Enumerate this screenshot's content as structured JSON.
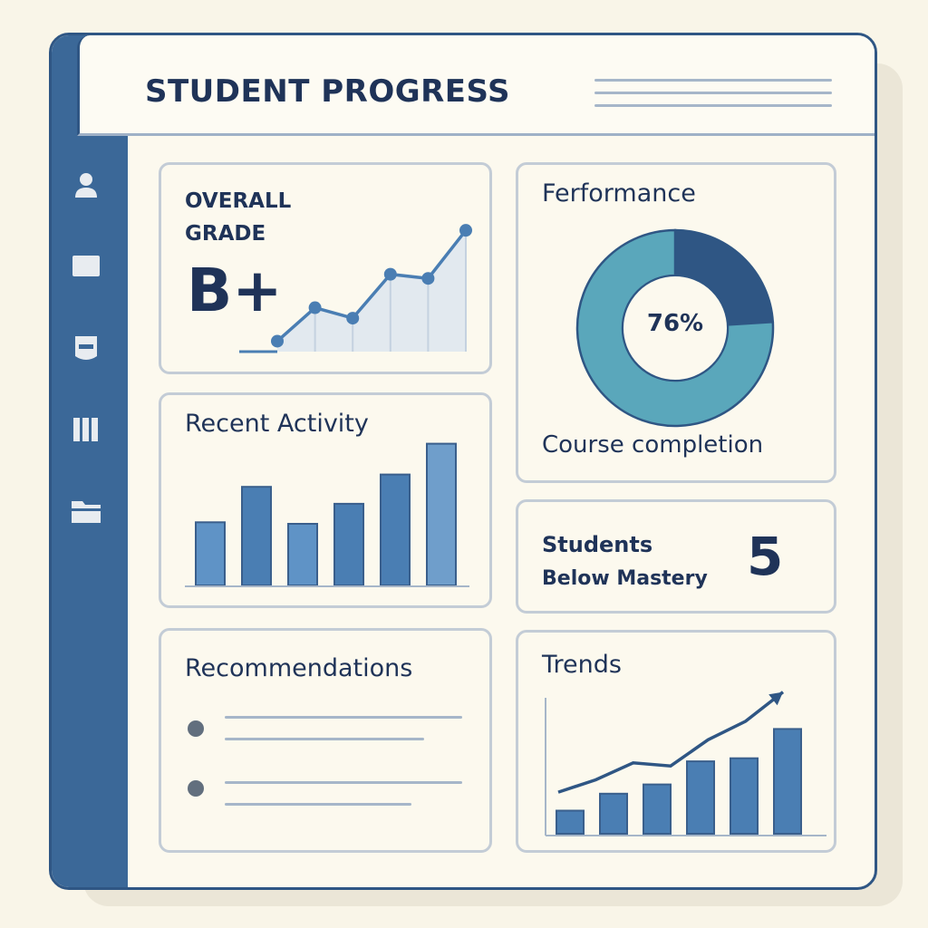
{
  "header": {
    "title": "STUDENT PROGRESS"
  },
  "sidebar": {
    "items": [
      {
        "icon": "user-icon"
      },
      {
        "icon": "monitor-icon"
      },
      {
        "icon": "badge-icon"
      },
      {
        "icon": "book-icon"
      },
      {
        "icon": "folder-icon"
      }
    ]
  },
  "overall_grade": {
    "title_line1": "OVERALL",
    "title_line2": "GRADE",
    "grade": "B+"
  },
  "performance": {
    "title": "Ferformance",
    "percent_label": "76%",
    "caption": "Course completion"
  },
  "recent_activity": {
    "title": "Recent Activity"
  },
  "students_below": {
    "title_line1": "Students",
    "title_line2": "Below Mastery",
    "count": "5"
  },
  "recommendations": {
    "title": "Recommendations"
  },
  "trends": {
    "title": "Trends"
  },
  "colors": {
    "navy": "#2f5684",
    "bar_blue": "#4a7eb3",
    "light_blue": "#6f9ecb",
    "teal": "#5aa7bb",
    "text": "#1f3358"
  },
  "chart_data": [
    {
      "type": "line",
      "name": "overall-grade-trend",
      "x": [
        1,
        2,
        3,
        4,
        5,
        6
      ],
      "values": [
        0.5,
        2.1,
        1.6,
        3.7,
        3.5,
        5.8
      ],
      "ylim": [
        0,
        6.5
      ],
      "title": "",
      "xlabel": "",
      "ylabel": ""
    },
    {
      "type": "pie",
      "name": "course-completion",
      "slices": [
        {
          "label": "remaining",
          "value": 24
        },
        {
          "label": "complete",
          "value": 76
        }
      ],
      "center_label": "76%"
    },
    {
      "type": "bar",
      "name": "recent-activity",
      "values": [
        4.1,
        6.4,
        4.0,
        5.3,
        7.2,
        9.2
      ],
      "ylim": [
        0,
        10
      ],
      "title": "",
      "xlabel": "",
      "ylabel": ""
    },
    {
      "type": "bar",
      "name": "trends",
      "values": [
        1.5,
        2.6,
        3.2,
        4.7,
        4.9,
        6.8
      ],
      "line": [
        2.7,
        3.5,
        4.6,
        4.4,
        6.1,
        7.3,
        9.2
      ],
      "ylim": [
        0,
        10
      ],
      "title": "",
      "xlabel": "",
      "ylabel": ""
    }
  ]
}
